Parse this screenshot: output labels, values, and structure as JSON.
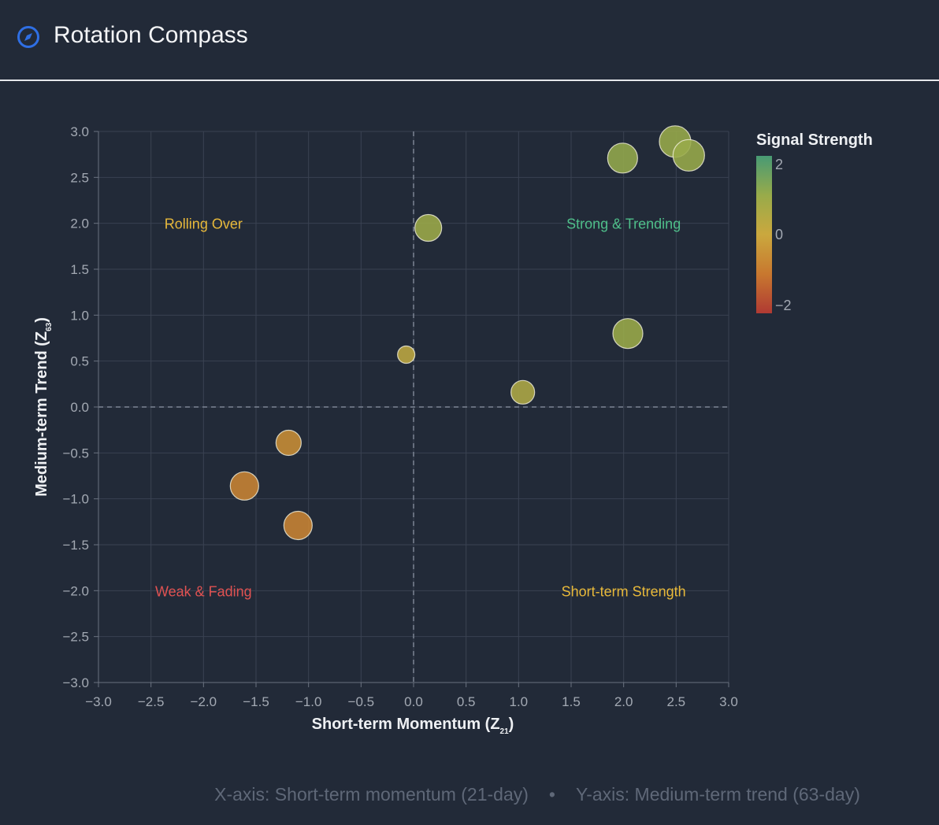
{
  "header": {
    "title": "Rotation Compass",
    "icon": "compass-icon",
    "icon_color": "#2f6fe4"
  },
  "chart_data": {
    "type": "scatter",
    "xlabel": {
      "text": "Short-term Momentum (Z",
      "sub": "21",
      "close": ")"
    },
    "ylabel": {
      "text": "Medium-term Trend (Z",
      "sub": "63",
      "close": ")"
    },
    "xlim": [
      -3,
      3
    ],
    "ylim": [
      -3,
      3
    ],
    "xticks": [
      "−3.0",
      "−2.5",
      "−2.0",
      "−1.5",
      "−1.0",
      "−0.5",
      "0.0",
      "0.5",
      "1.0",
      "1.5",
      "2.0",
      "2.5",
      "3.0"
    ],
    "yticks": [
      "3.0",
      "2.5",
      "2.0",
      "1.5",
      "1.0",
      "0.5",
      "0.0",
      "−0.5",
      "−1.0",
      "−1.5",
      "−2.0",
      "−2.5",
      "−3.0"
    ],
    "grid": true,
    "zero_lines": "dashed",
    "points": [
      {
        "x": 2.49,
        "y": 2.89,
        "signal": 1.0,
        "size": 20
      },
      {
        "x": 2.62,
        "y": 2.74,
        "signal": 1.0,
        "size": 20
      },
      {
        "x": 1.99,
        "y": 2.71,
        "signal": 1.05,
        "size": 19
      },
      {
        "x": 0.14,
        "y": 1.95,
        "signal": 0.9,
        "size": 17
      },
      {
        "x": 2.04,
        "y": 0.8,
        "signal": 0.95,
        "size": 19
      },
      {
        "x": -0.07,
        "y": 0.57,
        "signal": 0.25,
        "size": 11
      },
      {
        "x": 1.04,
        "y": 0.16,
        "signal": 0.55,
        "size": 15
      },
      {
        "x": -1.19,
        "y": -0.39,
        "signal": -0.55,
        "size": 16
      },
      {
        "x": -1.61,
        "y": -0.86,
        "signal": -0.75,
        "size": 18
      },
      {
        "x": -1.1,
        "y": -1.29,
        "signal": -0.75,
        "size": 18
      }
    ],
    "quadrants": [
      {
        "label": "Rolling Over",
        "x": -2.0,
        "y": 2.0,
        "color": "#e8b93a"
      },
      {
        "label": "Strong & Trending",
        "x": 2.0,
        "y": 2.0,
        "color": "#4fbf8a"
      },
      {
        "label": "Weak & Fading",
        "x": -2.0,
        "y": -2.0,
        "color": "#e05252"
      },
      {
        "label": "Short-term Strength",
        "x": 2.0,
        "y": -2.0,
        "color": "#e8b93a"
      }
    ],
    "colorbar": {
      "title": "Signal Strength",
      "range": [
        -2,
        2
      ],
      "ticks": [
        "2",
        "0",
        "−2"
      ],
      "colors": [
        "#b03a33",
        "#c8782f",
        "#caa83e",
        "#98ab4a",
        "#489a74"
      ]
    }
  },
  "footer": {
    "x_note": "X-axis: Short-term momentum (21-day)",
    "separator": "•",
    "y_note": "Y-axis: Medium-term trend (63-day)"
  }
}
